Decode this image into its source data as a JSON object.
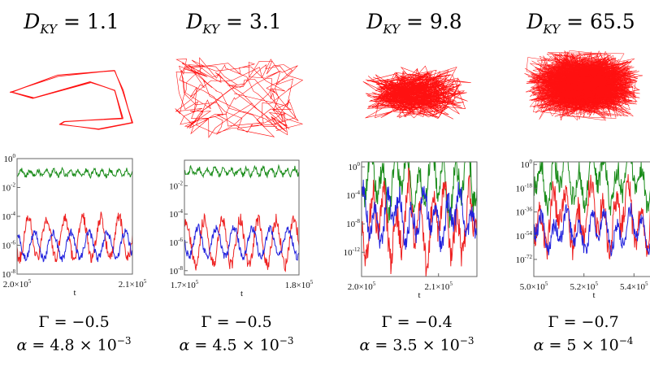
{
  "panels": [
    {
      "dky_symbol": "D",
      "dky_sub": "KY",
      "dky_value": "1.1",
      "gamma": "−0.5",
      "alpha_mantissa": "4.8",
      "alpha_exponent": "−3"
    },
    {
      "dky_symbol": "D",
      "dky_sub": "KY",
      "dky_value": "3.1",
      "gamma": "−0.5",
      "alpha_mantissa": "4.5",
      "alpha_exponent": "−3"
    },
    {
      "dky_symbol": "D",
      "dky_sub": "KY",
      "dky_value": "9.8",
      "gamma": "−0.4",
      "alpha_mantissa": "3.5",
      "alpha_exponent": "−3"
    },
    {
      "dky_symbol": "D",
      "dky_sub": "KY",
      "dky_value": "65.5",
      "gamma": "−0.7",
      "alpha_mantissa": "5",
      "alpha_exponent": "−4"
    }
  ],
  "labels": {
    "gamma_symbol": "Γ",
    "alpha_symbol": "α",
    "equals": "=",
    "times": "×",
    "ten": "10"
  },
  "chart_data": [
    {
      "type": "line",
      "xlabel": "t",
      "yscale": "log",
      "ylim_exponent": [
        -8,
        0
      ],
      "xlim": [
        200000,
        210000
      ],
      "xticks": [
        "2.0×10^5",
        "2.1×10^5"
      ],
      "yticks": [
        "10^0",
        "10^-2",
        "10^-4",
        "10^-6",
        "10^-8"
      ],
      "series": [
        {
          "color": "#1a8c1a",
          "level_exponent": -1
        },
        {
          "color": "#ee2222",
          "level_exponent": -5.5
        },
        {
          "color": "#2222dd",
          "level_exponent": -6
        }
      ]
    },
    {
      "type": "line",
      "xlabel": "t",
      "yscale": "log",
      "ylim_exponent": [
        -8.3,
        -0.2
      ],
      "xlim": [
        170000,
        180000
      ],
      "xticks": [
        "1.7×10^5",
        "1.8×10^5"
      ],
      "yticks": [
        "10^-2",
        "10^-4",
        "10^-6",
        "10^-8"
      ],
      "series": [
        {
          "color": "#1a8c1a",
          "level_exponent": -1
        },
        {
          "color": "#ee2222",
          "level_exponent": -6
        },
        {
          "color": "#2222dd",
          "level_exponent": -6
        }
      ]
    },
    {
      "type": "line",
      "xlabel": "t",
      "yscale": "log",
      "ylim_exponent": [
        -15.4,
        0.7
      ],
      "xlim": [
        200000,
        215000
      ],
      "xticks": [
        "2.0×10^5",
        "2.1×10^5"
      ],
      "yticks": [
        "10^0",
        "10^-4",
        "10^-8",
        "10^-12"
      ],
      "series": [
        {
          "color": "#1a8c1a",
          "level_exponent": -2
        },
        {
          "color": "#ee2222",
          "level_exponent": -8
        },
        {
          "color": "#2222dd",
          "level_exponent": -7
        }
      ]
    },
    {
      "type": "line",
      "xlabel": "t",
      "yscale": "log",
      "ylim_exponent": [
        -85,
        2
      ],
      "xlim": [
        500000,
        548000
      ],
      "xticks": [
        "5.0×10^5",
        "5.2×10^5",
        "5.4×10^5"
      ],
      "yticks": [
        "10^0",
        "10^-18",
        "10^-36",
        "10^-54",
        "10^-72"
      ],
      "series": [
        {
          "color": "#1a8c1a",
          "level_exponent": -10
        },
        {
          "color": "#ee2222",
          "level_exponent": -40
        },
        {
          "color": "#2222dd",
          "level_exponent": -50
        }
      ]
    }
  ],
  "attractor_color": "#ff1111"
}
